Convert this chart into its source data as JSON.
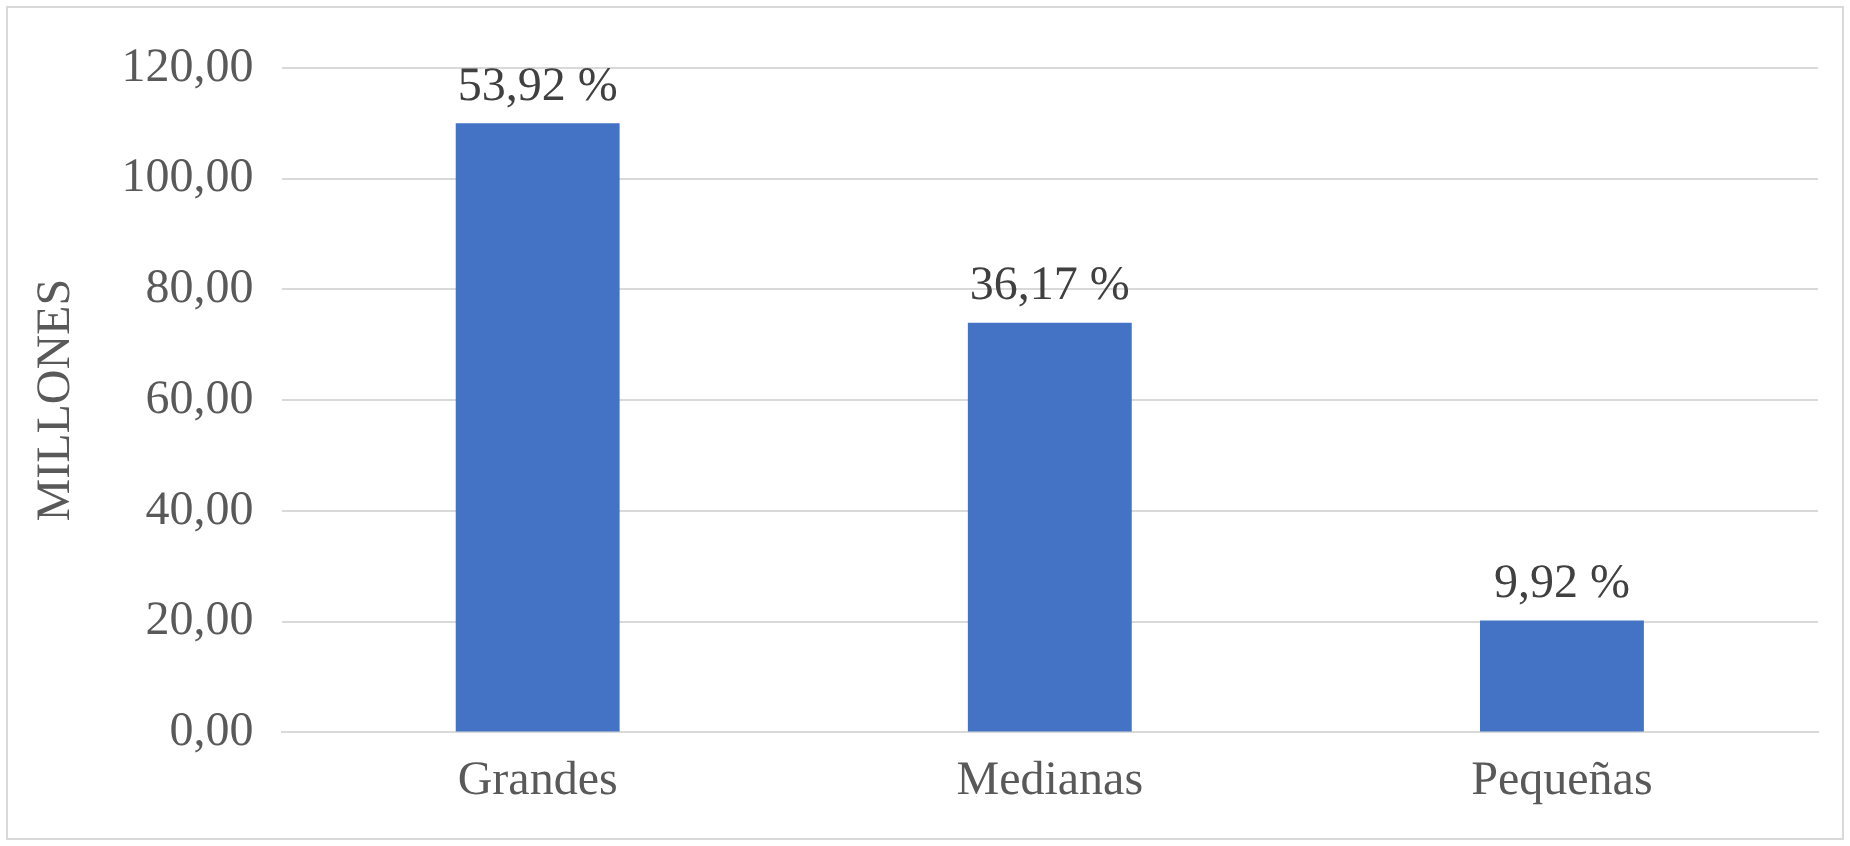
{
  "chart_data": {
    "type": "bar",
    "ylabel": "MILLONES",
    "categories": [
      "Grandes",
      "Medianas",
      "Pequeñas"
    ],
    "values": [
      110,
      74,
      20.2
    ],
    "annotations": [
      {
        "text": "53,92 %",
        "x": "Grandes",
        "y": 110
      },
      {
        "text": "36,17 %",
        "x": "Medianas",
        "y": 74
      },
      {
        "text": "9,92 %",
        "x": "Pequeñas",
        "y": 20.2
      }
    ],
    "color": "#4472c4",
    "ylim": [
      0,
      120
    ],
    "yticks": [
      {
        "value": 0,
        "label": "0,00"
      },
      {
        "value": 20,
        "label": "20,00"
      },
      {
        "value": 40,
        "label": "40,00"
      },
      {
        "value": 60,
        "label": "60,00"
      },
      {
        "value": 80,
        "label": "80,00"
      },
      {
        "value": 100,
        "label": "100,00"
      },
      {
        "value": 120,
        "label": "120,00"
      }
    ],
    "grid": "y"
  }
}
